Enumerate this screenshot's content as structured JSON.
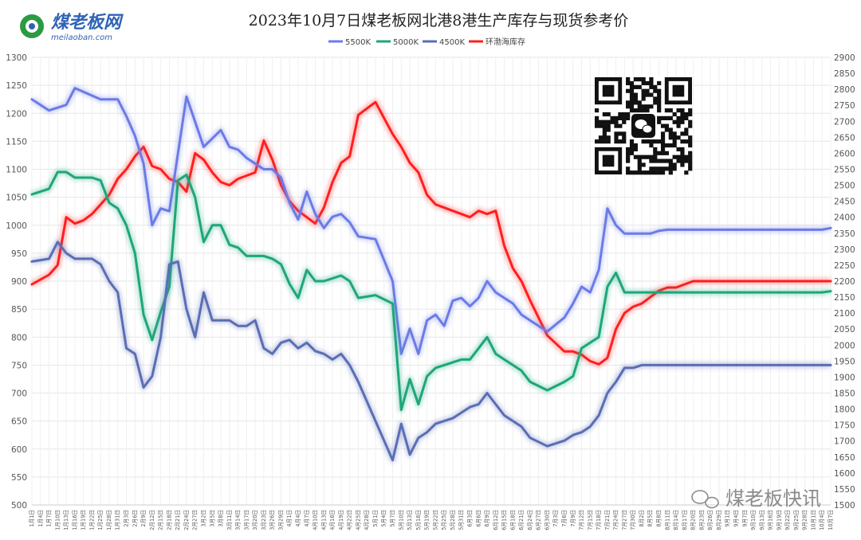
{
  "logo": {
    "brand_text": "煤老板网",
    "url_text": "meilaoban.com"
  },
  "watermark": {
    "text": "煤老板快讯"
  },
  "colors": {
    "s5500": "#6b7be6",
    "s5000": "#1ea67a",
    "s4500": "#5a6eb5",
    "inventory": "#ff1f1f",
    "grid": "#e6e6e6",
    "logo_green": "#2c9a43",
    "logo_blue": "#2f63b5"
  },
  "chart_data": {
    "type": "line",
    "title": "2023年10月7日煤老板网北港8港生产库存与现货参考价",
    "legend_position": "top-center",
    "grid": true,
    "y_left": {
      "min": 500,
      "max": 1300,
      "step": 50
    },
    "y_right": {
      "min": 1500,
      "max": 2900,
      "step": 50
    },
    "x_ticks": [
      "1月1日",
      "1月4日",
      "1月7日",
      "1月10日",
      "1月13日",
      "1月16日",
      "1月19日",
      "1月22日",
      "1月25日",
      "1月28日",
      "1月31日",
      "2月3日",
      "2月6日",
      "2月9日",
      "2月12日",
      "2月15日",
      "2月18日",
      "2月21日",
      "2月24日",
      "2月27日",
      "3月2日",
      "3月5日",
      "3月8日",
      "3月11日",
      "3月14日",
      "3月17日",
      "3月20日",
      "3月23日",
      "3月26日",
      "3月29日",
      "4月1日",
      "4月4日",
      "4月7日",
      "4月10日",
      "4月13日",
      "4月16日",
      "4月19日",
      "4月22日",
      "4月25日",
      "4月28日",
      "5月1日",
      "5月4日",
      "5月7日",
      "5月10日",
      "5月13日",
      "5月16日",
      "5月19日",
      "5月22日",
      "5月25日",
      "5月28日",
      "5月31日",
      "6月3日",
      "6月6日",
      "6月9日",
      "6月12日",
      "6月15日",
      "6月18日",
      "6月21日",
      "6月24日",
      "6月27日",
      "6月30日",
      "7月3日",
      "7月6日",
      "7月9日",
      "7月12日",
      "7月15日",
      "7月18日",
      "7月21日",
      "7月24日",
      "7月27日",
      "7月30日",
      "8月2日",
      "8月5日",
      "8月8日",
      "8月11日",
      "8月14日",
      "8月17日",
      "8月20日",
      "8月23日",
      "8月26日",
      "8月29日",
      "9月1日",
      "9月4日",
      "9月7日",
      "9月10日",
      "9月13日",
      "9月16日",
      "9月19日",
      "9月22日",
      "9月25日",
      "9月28日",
      "10月1日",
      "10月4日",
      "10月7日"
    ],
    "series": [
      {
        "name": "5500K",
        "axis": "left",
        "x": [
          0,
          2,
          4,
          5,
          8,
          10,
          11,
          12,
          13,
          14,
          15,
          16,
          18,
          20,
          22,
          23,
          24,
          25,
          26,
          27,
          28,
          29,
          30,
          31,
          32,
          33,
          34,
          35,
          36,
          37,
          38,
          40,
          42,
          43,
          44,
          45,
          46,
          47,
          48,
          49,
          50,
          51,
          52,
          53,
          54,
          55,
          56,
          57,
          58,
          60,
          62,
          63,
          64,
          65,
          66,
          67,
          68,
          69,
          70,
          71,
          72,
          73,
          74,
          75,
          76,
          77,
          78,
          79,
          80,
          81,
          82,
          83,
          84,
          85,
          86,
          87,
          88,
          89,
          90,
          91,
          92,
          93
        ],
        "values": [
          1225,
          1205,
          1215,
          1245,
          1225,
          1225,
          1195,
          1160,
          1110,
          1000,
          1030,
          1025,
          1230,
          1140,
          1170,
          1140,
          1135,
          1120,
          1110,
          1100,
          1100,
          1085,
          1040,
          1010,
          1060,
          1020,
          995,
          1015,
          1020,
          1005,
          980,
          975,
          900,
          770,
          815,
          770,
          830,
          840,
          820,
          865,
          870,
          855,
          870,
          900,
          880,
          870,
          860,
          840,
          830,
          810,
          835,
          860,
          890,
          880,
          920,
          1030,
          1000,
          985,
          985,
          985,
          985,
          990,
          992,
          992,
          992,
          992,
          992,
          992,
          992,
          992,
          992,
          992,
          992,
          992,
          992,
          992,
          992,
          992,
          992,
          992,
          992,
          995
        ]
      },
      {
        "name": "5000K",
        "axis": "left",
        "x": [
          0,
          2,
          3,
          4,
          5,
          7,
          8,
          9,
          10,
          11,
          12,
          13,
          14,
          15,
          16,
          17,
          18,
          19,
          20,
          21,
          22,
          23,
          24,
          25,
          26,
          27,
          28,
          29,
          30,
          31,
          32,
          33,
          34,
          35,
          36,
          37,
          38,
          40,
          42,
          43,
          44,
          45,
          46,
          47,
          48,
          49,
          50,
          51,
          52,
          53,
          54,
          55,
          56,
          57,
          58,
          60,
          62,
          63,
          64,
          65,
          66,
          67,
          68,
          69,
          70,
          71,
          72,
          73,
          74,
          75,
          76,
          77,
          78,
          79,
          80,
          81,
          82,
          83,
          84,
          85,
          86,
          87,
          88,
          89,
          90,
          91,
          92,
          93
        ],
        "values": [
          1055,
          1065,
          1095,
          1095,
          1085,
          1085,
          1080,
          1040,
          1030,
          1000,
          950,
          840,
          795,
          845,
          890,
          1080,
          1090,
          1050,
          970,
          1000,
          1000,
          965,
          960,
          945,
          945,
          945,
          940,
          930,
          895,
          870,
          920,
          900,
          900,
          905,
          910,
          900,
          870,
          875,
          860,
          670,
          725,
          680,
          730,
          745,
          750,
          755,
          760,
          760,
          780,
          800,
          770,
          760,
          750,
          740,
          720,
          705,
          720,
          730,
          780,
          790,
          800,
          890,
          915,
          880,
          880,
          880,
          880,
          880,
          880,
          880,
          880,
          880,
          880,
          880,
          880,
          880,
          880,
          880,
          880,
          880,
          880,
          880,
          880,
          880,
          880,
          880,
          880,
          882
        ]
      },
      {
        "name": "4500K",
        "axis": "left",
        "x": [
          0,
          2,
          3,
          4,
          5,
          7,
          8,
          9,
          10,
          11,
          12,
          13,
          14,
          15,
          16,
          17,
          18,
          19,
          20,
          21,
          22,
          23,
          24,
          25,
          26,
          27,
          28,
          29,
          30,
          31,
          32,
          33,
          34,
          35,
          36,
          37,
          38,
          40,
          42,
          43,
          44,
          45,
          46,
          47,
          48,
          49,
          50,
          51,
          52,
          53,
          54,
          55,
          56,
          57,
          58,
          60,
          62,
          63,
          64,
          65,
          66,
          67,
          68,
          69,
          70,
          71,
          72,
          73,
          74,
          75,
          76,
          77,
          78,
          79,
          80,
          81,
          82,
          83,
          84,
          85,
          86,
          87,
          88,
          89,
          90,
          91,
          92,
          93
        ],
        "values": [
          935,
          940,
          970,
          950,
          940,
          940,
          930,
          900,
          880,
          780,
          770,
          710,
          730,
          800,
          930,
          935,
          850,
          800,
          880,
          830,
          830,
          830,
          820,
          820,
          830,
          780,
          770,
          790,
          795,
          780,
          790,
          775,
          770,
          760,
          770,
          750,
          720,
          650,
          580,
          645,
          590,
          620,
          630,
          645,
          650,
          655,
          665,
          675,
          680,
          700,
          680,
          660,
          650,
          640,
          620,
          605,
          615,
          625,
          630,
          640,
          660,
          700,
          720,
          745,
          745,
          750,
          750,
          750,
          750,
          750,
          750,
          750,
          750,
          750,
          750,
          750,
          750,
          750,
          750,
          750,
          750,
          750,
          750,
          750,
          750,
          750,
          750,
          750
        ]
      },
      {
        "name": "环渤海库存",
        "axis": "right",
        "x": [
          0,
          2,
          3,
          4,
          5,
          6,
          7,
          8,
          9,
          10,
          11,
          12,
          13,
          14,
          15,
          16,
          17,
          18,
          19,
          20,
          21,
          22,
          23,
          24,
          25,
          26,
          27,
          28,
          29,
          30,
          31,
          32,
          33,
          34,
          35,
          36,
          37,
          38,
          40,
          42,
          43,
          44,
          45,
          46,
          47,
          48,
          49,
          50,
          51,
          52,
          53,
          54,
          55,
          56,
          57,
          58,
          60,
          62,
          63,
          64,
          65,
          66,
          67,
          68,
          69,
          70,
          71,
          72,
          73,
          74,
          75,
          76,
          77,
          78,
          79,
          80,
          81,
          82,
          83,
          84,
          85,
          86,
          87,
          88,
          89,
          90,
          91,
          92,
          93
        ],
        "values": [
          2190,
          2220,
          2250,
          2400,
          2380,
          2390,
          2410,
          2440,
          2470,
          2520,
          2550,
          2590,
          2620,
          2560,
          2550,
          2520,
          2510,
          2480,
          2600,
          2580,
          2540,
          2510,
          2500,
          2520,
          2530,
          2540,
          2640,
          2580,
          2500,
          2450,
          2420,
          2400,
          2380,
          2430,
          2510,
          2570,
          2590,
          2720,
          2760,
          2660,
          2620,
          2570,
          2540,
          2470,
          2440,
          2430,
          2420,
          2410,
          2400,
          2420,
          2410,
          2420,
          2310,
          2240,
          2200,
          2140,
          2030,
          1980,
          1980,
          1970,
          1950,
          1940,
          1960,
          2050,
          2100,
          2120,
          2130,
          2150,
          2170,
          2180,
          2180,
          2190,
          2200,
          2200,
          2200,
          2200,
          2200,
          2200,
          2200,
          2200,
          2200,
          2200,
          2200,
          2200,
          2200,
          2200,
          2200,
          2200,
          2200
        ]
      }
    ]
  }
}
